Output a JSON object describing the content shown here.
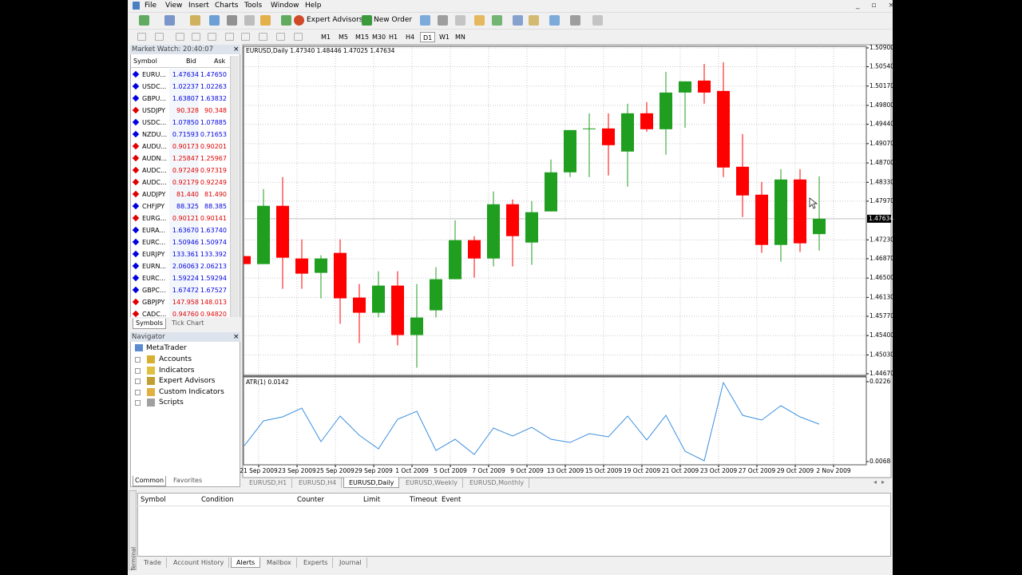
{
  "menu": [
    "File",
    "View",
    "Insert",
    "Charts",
    "Tools",
    "Window",
    "Help"
  ],
  "toolbar": {
    "buttons": [
      "Expert Advisors",
      "New Order"
    ],
    "timeframes": [
      "M1",
      "M5",
      "M15",
      "M30",
      "H1",
      "H4",
      "D1",
      "W1",
      "MN"
    ]
  },
  "market_watch": {
    "title": "Market Watch: 20:40:07",
    "columns": [
      "Symbol",
      "Bid",
      "Ask"
    ],
    "rows": [
      [
        "EURU...",
        "1.47634",
        "1.47650",
        "#0000e0"
      ],
      [
        "USDC...",
        "1.02237",
        "1.02263",
        "#0000e0"
      ],
      [
        "GBPU...",
        "1.63807",
        "1.63832",
        "#0000e0"
      ],
      [
        "USDJPY",
        "90.328",
        "90.348",
        "#e00000"
      ],
      [
        "USDC...",
        "1.07850",
        "1.07885",
        "#0000e0"
      ],
      [
        "NZDU...",
        "0.71593",
        "0.71653",
        "#0000e0"
      ],
      [
        "AUDU...",
        "0.90173",
        "0.90201",
        "#e00000"
      ],
      [
        "AUDN...",
        "1.25847",
        "1.25967",
        "#e00000"
      ],
      [
        "AUDC...",
        "0.97249",
        "0.97319",
        "#e00000"
      ],
      [
        "AUDC...",
        "0.92179",
        "0.92249",
        "#e00000"
      ],
      [
        "AUDJPY",
        "81.440",
        "81.490",
        "#e00000"
      ],
      [
        "CHFJPY",
        "88.325",
        "88.385",
        "#0000e0"
      ],
      [
        "EURG...",
        "0.90121",
        "0.90141",
        "#e00000"
      ],
      [
        "EURA...",
        "1.63670",
        "1.63740",
        "#0000e0"
      ],
      [
        "EURC...",
        "1.50946",
        "1.50974",
        "#0000e0"
      ],
      [
        "EURJPY",
        "133.361",
        "133.392",
        "#0000e0"
      ],
      [
        "EURN...",
        "2.06063",
        "2.06213",
        "#0000e0"
      ],
      [
        "EURC...",
        "1.59224",
        "1.59294",
        "#0000e0"
      ],
      [
        "GBPC...",
        "1.67472",
        "1.67527",
        "#0000e0"
      ],
      [
        "GBPJPY",
        "147.958",
        "148.013",
        "#e00000"
      ],
      [
        "CADC...",
        "0.94760",
        "0.94820",
        "#e00000"
      ]
    ],
    "tabs": [
      "Symbols",
      "Tick Chart"
    ]
  },
  "navigator": {
    "title": "Navigator",
    "root": "MetaTrader",
    "items": [
      "Accounts",
      "Indicators",
      "Expert Advisors",
      "Custom Indicators",
      "Scripts"
    ],
    "tabs": [
      "Common",
      "Favorites"
    ]
  },
  "chart": {
    "type": "candlestick",
    "header": "EURUSD,Daily  1.47340 1.48446 1.47025 1.47634",
    "up_color": "#1f9e1f",
    "down_color": "#ff0000",
    "open": [
      1.4692,
      1.46767,
      1.47881,
      1.46874,
      1.466,
      1.46981,
      1.46127,
      1.45837,
      1.46356,
      1.4541,
      1.45883,
      1.46478,
      1.47225,
      1.46874,
      1.47911,
      1.47179,
      1.47774,
      1.48521,
      1.49345,
      1.4936,
      1.48918,
      1.4965,
      1.49345,
      1.50046,
      1.50275,
      1.50077,
      1.48628,
      1.48094,
      1.47133,
      1.48384,
      1.4734
    ],
    "high": [
      1.4692,
      1.48201,
      1.4843,
      1.4724,
      1.46935,
      1.4724,
      1.46386,
      1.4663,
      1.4663,
      1.46386,
      1.46706,
      1.47606,
      1.47301,
      1.48155,
      1.48003,
      1.47972,
      1.48765,
      1.49329,
      1.4965,
      1.4965,
      1.49833,
      1.49863,
      1.50443,
      1.5026,
      1.50595,
      1.50626,
      1.49253,
      1.48338,
      1.48582,
      1.48582,
      1.48446
    ],
    "low": [
      1.46767,
      1.46767,
      1.46295,
      1.46295,
      1.46112,
      1.45624,
      1.45258,
      1.45746,
      1.45212,
      1.44785,
      1.45746,
      1.46478,
      1.46508,
      1.46722,
      1.46722,
      1.46752,
      1.47774,
      1.4843,
      1.4843,
      1.4846,
      1.48247,
      1.49299,
      1.48857,
      1.49375,
      1.49833,
      1.4843,
      1.47667,
      1.46981,
      1.46813,
      1.46996,
      1.47025
    ],
    "close": [
      1.46767,
      1.47881,
      1.46889,
      1.46584,
      1.46874,
      1.46112,
      1.45837,
      1.46356,
      1.4541,
      1.45746,
      1.46478,
      1.47225,
      1.46874,
      1.47911,
      1.47301,
      1.47759,
      1.48521,
      1.49329,
      1.4936,
      1.4904,
      1.4965,
      1.49345,
      1.50046,
      1.5026,
      1.50046,
      1.48613,
      1.48079,
      1.47133,
      1.48384,
      1.47164,
      1.47634
    ],
    "ylim": [
      1.4464,
      1.5093
    ],
    "yticks": [
      {
        "value": 1.509,
        "label": "1.50900"
      },
      {
        "value": 1.5054,
        "label": "1.50540"
      },
      {
        "value": 1.5017,
        "label": "1.50170"
      },
      {
        "value": 1.498,
        "label": "1.49800"
      },
      {
        "value": 1.4944,
        "label": "1.49440"
      },
      {
        "value": 1.4907,
        "label": "1.49070"
      },
      {
        "value": 1.487,
        "label": "1.48700"
      },
      {
        "value": 1.4833,
        "label": "1.48330"
      },
      {
        "value": 1.4797,
        "label": "1.47970"
      },
      {
        "value": 1.4723,
        "label": "1.47230"
      },
      {
        "value": 1.4687,
        "label": "1.46870"
      },
      {
        "value": 1.465,
        "label": "1.46500"
      },
      {
        "value": 1.4613,
        "label": "1.46130"
      },
      {
        "value": 1.4577,
        "label": "1.45770"
      },
      {
        "value": 1.454,
        "label": "1.45400"
      },
      {
        "value": 1.4503,
        "label": "1.45030"
      },
      {
        "value": 1.4467,
        "label": "1.44670"
      }
    ],
    "x_labels": [
      "21 Sep 2009",
      "23 Sep 2009",
      "25 Sep 2009",
      "29 Sep 2009",
      "1 Oct 2009",
      "5 Oct 2009",
      "7 Oct 2009",
      "9 Oct 2009",
      "13 Oct 2009",
      "15 Oct 2009",
      "19 Oct 2009",
      "21 Oct 2009",
      "23 Oct 2009",
      "27 Oct 2009",
      "29 Oct 2009",
      "2 Nov 2009"
    ],
    "grid": true,
    "indicator": {
      "title": "ATR(1) 0.0142",
      "color": "#3b8fe0",
      "values": [
        0.00996,
        0.01486,
        0.01565,
        0.01739,
        0.01075,
        0.01581,
        0.01201,
        0.00933,
        0.01517,
        0.01675,
        0.00901,
        0.01122,
        0.00822,
        0.01344,
        0.01186,
        0.01359,
        0.01122,
        0.01059,
        0.01233,
        0.0117,
        0.01581,
        0.01107,
        0.01596,
        0.00885,
        0.00696,
        0.02244,
        0.01596,
        0.01502,
        0.01786,
        0.01565,
        0.01421
      ],
      "ylim": [
        0.00617,
        0.02355
      ],
      "yticks": [
        0.0226,
        0.0068
      ]
    },
    "tabs": [
      "EURUSD,H1",
      "EURUSD,H4",
      "EURUSD,Daily",
      "EURUSD,Weekly",
      "EURUSD,Monthly"
    ],
    "active_tab": 2
  },
  "terminal": {
    "label": "Terminal",
    "columns": [
      "Symbol",
      "Condition",
      "Counter",
      "Limit",
      "Timeout",
      "Event"
    ],
    "tabs": [
      "Trade",
      "Account History",
      "Alerts",
      "Mailbox",
      "Experts",
      "Journal"
    ],
    "active_tab": 2
  }
}
